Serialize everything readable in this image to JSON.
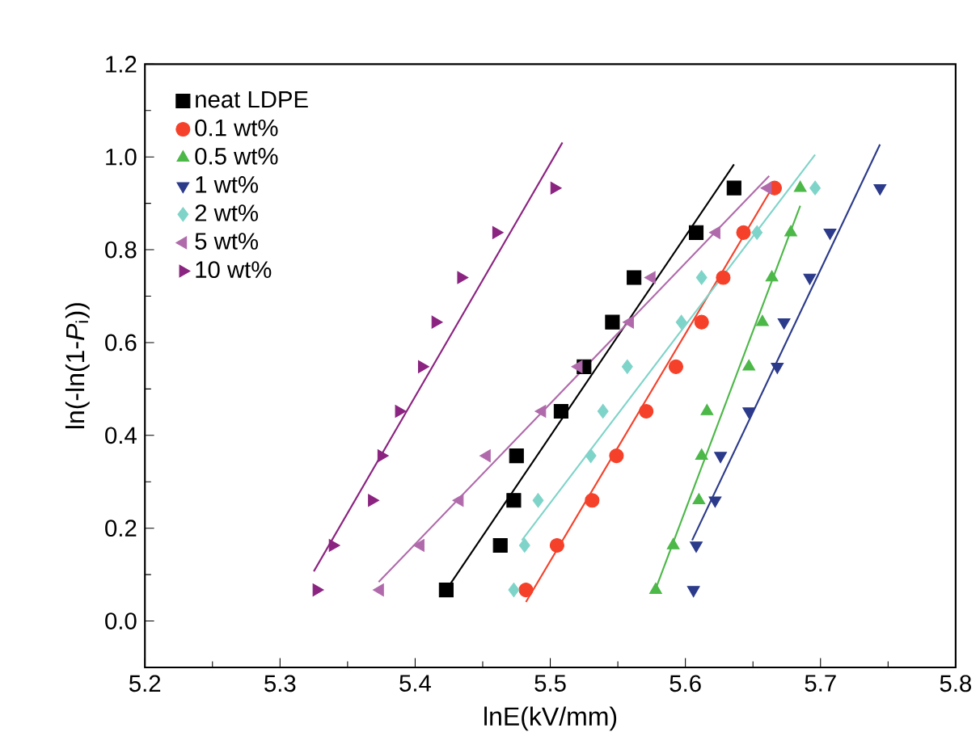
{
  "chart_data": {
    "type": "scatter",
    "xlabel": "lnE(kV/mm)",
    "ylabel": "ln(-ln(1-*P*$_{i}$))",
    "xlim": [
      5.2,
      5.8
    ],
    "xticks": [
      5.2,
      5.3,
      5.4,
      5.5,
      5.6,
      5.7,
      5.8
    ],
    "ylim": [
      -0.1,
      1.2
    ],
    "yticks": [
      {
        "value": 0,
        "label": "0.0"
      },
      {
        "value": 0.2,
        "label": "0.2"
      },
      {
        "value": 0.4,
        "label": "0.4"
      },
      {
        "value": 0.6,
        "label": "0.6"
      },
      {
        "value": 0.8,
        "label": "0.8"
      },
      {
        "value": 1.0,
        "label": "1.0"
      },
      {
        "value": 1.2,
        "label": "1.2"
      }
    ],
    "grid": false,
    "legend": "top left",
    "series": [
      {
        "name": "neat LDPE",
        "color": "#000000",
        "marker": "square",
        "x": [
          5.423,
          5.463,
          5.473,
          5.475,
          5.508,
          5.525,
          5.546,
          5.562,
          5.608,
          5.636
        ],
        "values": [
          0.067,
          0.163,
          0.26,
          0.356,
          0.452,
          0.548,
          0.644,
          0.74,
          0.837,
          0.933
        ]
      },
      {
        "name": "0.1 wt%",
        "color": "#f5412a",
        "marker": "circle",
        "x": [
          5.482,
          5.505,
          5.531,
          5.549,
          5.571,
          5.593,
          5.612,
          5.628,
          5.643,
          5.666
        ],
        "values": [
          0.067,
          0.163,
          0.26,
          0.356,
          0.452,
          0.548,
          0.644,
          0.74,
          0.837,
          0.933
        ]
      },
      {
        "name": "0.5 wt%",
        "color": "#4cb848",
        "marker": "triangle",
        "x": [
          5.578,
          5.591,
          5.61,
          5.612,
          5.616,
          5.647,
          5.657,
          5.664,
          5.678,
          5.685
        ],
        "values": [
          0.067,
          0.163,
          0.26,
          0.356,
          0.452,
          0.548,
          0.644,
          0.74,
          0.837,
          0.933
        ]
      },
      {
        "name": "1 wt%",
        "color": "#2b3a8a",
        "marker": "triangle-down",
        "x": [
          5.606,
          5.608,
          5.622,
          5.626,
          5.647,
          5.668,
          5.673,
          5.692,
          5.707,
          5.744
        ],
        "values": [
          0.067,
          0.163,
          0.26,
          0.356,
          0.452,
          0.548,
          0.644,
          0.74,
          0.837,
          0.933
        ]
      },
      {
        "name": "2 wt%",
        "color": "#7fd4c9",
        "marker": "diamond",
        "x": [
          5.473,
          5.481,
          5.491,
          5.53,
          5.539,
          5.557,
          5.597,
          5.612,
          5.653,
          5.696
        ],
        "values": [
          0.067,
          0.163,
          0.26,
          0.356,
          0.452,
          0.548,
          0.644,
          0.74,
          0.837,
          0.933
        ]
      },
      {
        "name": "5 wt%",
        "color": "#b06aab",
        "marker": "triangle-left",
        "x": [
          5.374,
          5.404,
          5.433,
          5.453,
          5.494,
          5.521,
          5.559,
          5.575,
          5.623,
          5.661
        ],
        "values": [
          0.067,
          0.163,
          0.26,
          0.356,
          0.452,
          0.548,
          0.644,
          0.74,
          0.837,
          0.933
        ]
      },
      {
        "name": "10 wt%",
        "color": "#8b2380",
        "marker": "triangle-right",
        "x": [
          5.327,
          5.339,
          5.368,
          5.375,
          5.388,
          5.405,
          5.415,
          5.434,
          5.46,
          5.503
        ],
        "values": [
          0.067,
          0.163,
          0.26,
          0.356,
          0.452,
          0.548,
          0.644,
          0.74,
          0.837,
          0.933
        ]
      },
      {
        "type": "line",
        "color": "#000000",
        "x": [
          5.423,
          5.636
        ],
        "values": [
          0.067,
          0.984
        ]
      },
      {
        "type": "line",
        "color": "#f5412a",
        "x": [
          5.482,
          5.666
        ],
        "values": [
          0.041,
          0.942
        ]
      },
      {
        "type": "line",
        "color": "#4cb848",
        "x": [
          5.578,
          5.685
        ],
        "values": [
          0.069,
          0.895
        ]
      },
      {
        "type": "line",
        "color": "#2b3a8a",
        "x": [
          5.605,
          5.744
        ],
        "values": [
          0.174,
          1.027
        ]
      },
      {
        "type": "line",
        "color": "#7fd4c9",
        "x": [
          5.479,
          5.696
        ],
        "values": [
          0.174,
          1.005
        ]
      },
      {
        "type": "line",
        "color": "#b06aab",
        "x": [
          5.373,
          5.662
        ],
        "values": [
          0.084,
          0.959
        ]
      },
      {
        "type": "line",
        "color": "#8b2380",
        "x": [
          5.325,
          5.509
        ],
        "values": [
          0.107,
          1.031
        ]
      }
    ]
  }
}
